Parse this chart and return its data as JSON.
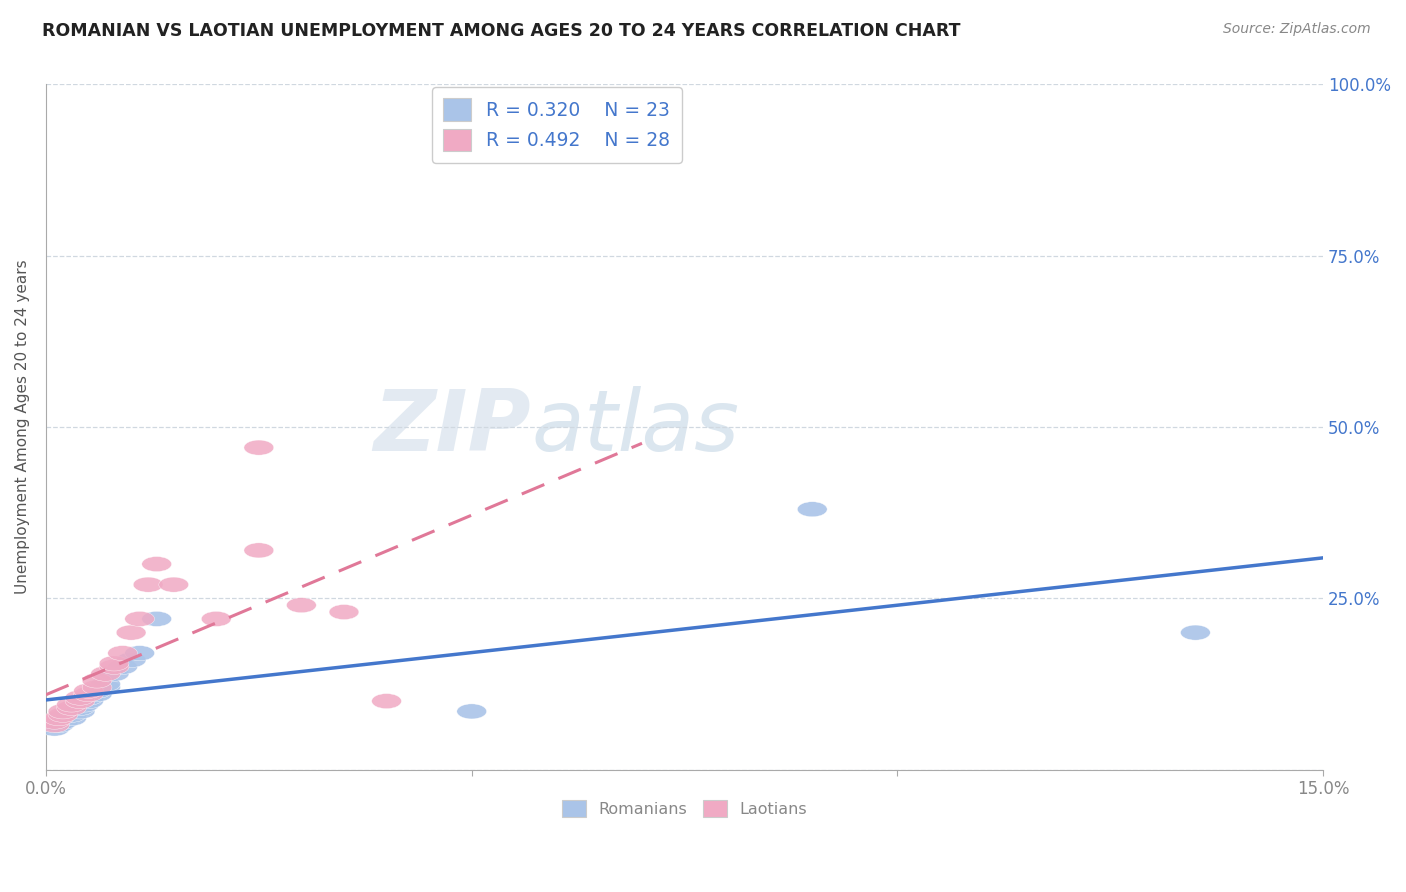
{
  "title": "ROMANIAN VS LAOTIAN UNEMPLOYMENT AMONG AGES 20 TO 24 YEARS CORRELATION CHART",
  "source": "Source: ZipAtlas.com",
  "ylabel": "Unemployment Among Ages 20 to 24 years",
  "xlim": [
    0.0,
    0.15
  ],
  "ylim": [
    0.0,
    1.0
  ],
  "yticks": [
    0.0,
    0.25,
    0.5,
    0.75,
    1.0
  ],
  "ytick_labels": [
    "",
    "25.0%",
    "50.0%",
    "75.0%",
    "100.0%"
  ],
  "xticks": [
    0.0,
    0.05,
    0.1,
    0.15
  ],
  "xtick_labels": [
    "0.0%",
    "",
    "",
    "15.0%"
  ],
  "romanian_R": "R = 0.320",
  "romanian_N": "N = 23",
  "laotian_R": "R = 0.492",
  "laotian_N": "N = 28",
  "romanian_scatter_color": "#aac4e8",
  "laotian_scatter_color": "#f0aac4",
  "trendline_romanian_color": "#4477cc",
  "trendline_laotian_color": "#e07898",
  "watermark_color_zip": "#dde8f0",
  "watermark_color_atlas": "#b8cce0",
  "bg_color": "#ffffff",
  "grid_color": "#d0d8e0",
  "tick_color_blue": "#4477cc",
  "tick_color_gray": "#888888",
  "title_color": "#222222",
  "source_color": "#888888",
  "ylabel_color": "#555555",
  "legend_border": "#cccccc",
  "romanian_x": [
    0.001,
    0.0015,
    0.002,
    0.002,
    0.003,
    0.003,
    0.004,
    0.004,
    0.0045,
    0.005,
    0.005,
    0.006,
    0.006,
    0.007,
    0.007,
    0.008,
    0.009,
    0.01,
    0.011,
    0.013,
    0.05,
    0.09,
    0.135
  ],
  "romanian_y": [
    0.06,
    0.065,
    0.07,
    0.075,
    0.075,
    0.08,
    0.085,
    0.09,
    0.095,
    0.1,
    0.105,
    0.11,
    0.115,
    0.12,
    0.125,
    0.14,
    0.15,
    0.16,
    0.17,
    0.22,
    0.085,
    0.38,
    0.2
  ],
  "laotian_x": [
    0.001,
    0.001,
    0.0015,
    0.002,
    0.002,
    0.003,
    0.003,
    0.004,
    0.004,
    0.005,
    0.005,
    0.006,
    0.006,
    0.007,
    0.008,
    0.008,
    0.009,
    0.01,
    0.011,
    0.012,
    0.013,
    0.015,
    0.02,
    0.025,
    0.03,
    0.035,
    0.04,
    0.025
  ],
  "laotian_y": [
    0.065,
    0.07,
    0.075,
    0.08,
    0.085,
    0.09,
    0.095,
    0.1,
    0.105,
    0.11,
    0.115,
    0.12,
    0.13,
    0.14,
    0.15,
    0.155,
    0.17,
    0.2,
    0.22,
    0.27,
    0.3,
    0.27,
    0.22,
    0.32,
    0.24,
    0.23,
    0.1,
    0.47
  ]
}
